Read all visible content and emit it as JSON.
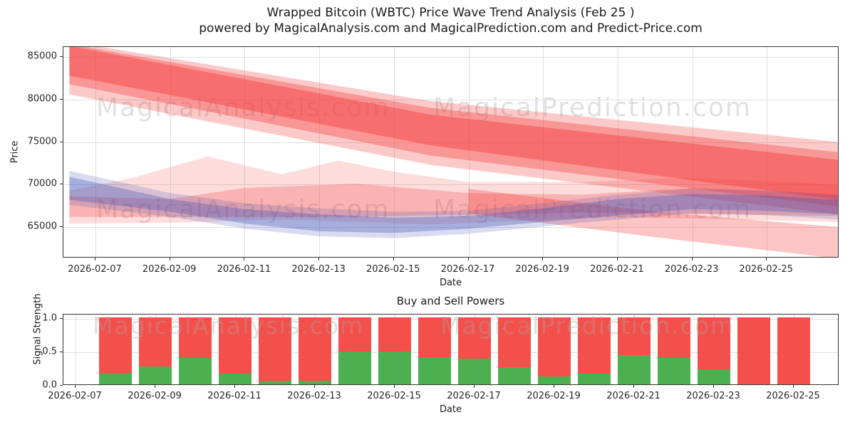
{
  "header": {
    "title_line1": "Wrapped Bitcoin (WBTC) Price Wave Trend Analysis (Feb 25 )",
    "title_line2": "powered by MagicalAnalysis.com and MagicalPrediction.com and Predict-Price.com"
  },
  "watermarks": {
    "analysis": "MagicalAnalysis.com",
    "prediction": "MagicalPrediction.com"
  },
  "price_chart": {
    "ylabel": "Price",
    "xlabel": "Date",
    "y_ticks": [
      {
        "label": "85000",
        "value": 85000
      },
      {
        "label": "80000",
        "value": 80000
      },
      {
        "label": "75000",
        "value": 75000
      },
      {
        "label": "70000",
        "value": 70000
      },
      {
        "label": "65000",
        "value": 65000
      }
    ],
    "x_ticks": [
      {
        "label": "2026-02-07",
        "day": 7
      },
      {
        "label": "2026-02-09",
        "day": 9
      },
      {
        "label": "2026-02-11",
        "day": 11
      },
      {
        "label": "2026-02-13",
        "day": 13
      },
      {
        "label": "2026-02-15",
        "day": 15
      },
      {
        "label": "2026-02-17",
        "day": 17
      },
      {
        "label": "2026-02-19",
        "day": 19
      },
      {
        "label": "2026-02-21",
        "day": 21
      },
      {
        "label": "2026-02-23",
        "day": 23
      },
      {
        "label": "2026-02-25",
        "day": 25
      }
    ]
  },
  "power_chart": {
    "title": "Buy and Sell Powers",
    "ylabel": "Signal Strength",
    "xlabel": "Date",
    "y_ticks": [
      {
        "label": "1.0",
        "value": 1.0
      },
      {
        "label": "0.5",
        "value": 0.5
      },
      {
        "label": "0.0",
        "value": 0.0
      }
    ],
    "x_ticks": [
      {
        "label": "2026-02-07",
        "day": 7
      },
      {
        "label": "2026-02-09",
        "day": 9
      },
      {
        "label": "2026-02-11",
        "day": 11
      },
      {
        "label": "2026-02-13",
        "day": 13
      },
      {
        "label": "2026-02-15",
        "day": 15
      },
      {
        "label": "2026-02-17",
        "day": 17
      },
      {
        "label": "2026-02-19",
        "day": 19
      },
      {
        "label": "2026-02-21",
        "day": 21
      },
      {
        "label": "2026-02-23",
        "day": 23
      },
      {
        "label": "2026-02-25",
        "day": 25
      }
    ]
  },
  "colors": {
    "bar_buy": "#4caf50",
    "bar_sell": "#f4504b",
    "band_red": "#f43d3d",
    "band_blue": "#3f51b5",
    "grid": "#e0e0e0",
    "spine": "#333333"
  },
  "chart_data": [
    {
      "type": "area",
      "title": "Wrapped Bitcoin (WBTC) Price Wave Trend Analysis (Feb 25 )",
      "xlabel": "Date",
      "ylabel": "Price",
      "x_range": [
        "2026-02-06",
        "2026-02-27"
      ],
      "ylim": [
        61300,
        86200
      ],
      "y_tick_values": [
        65000,
        70000,
        75000,
        80000,
        85000
      ],
      "x_tick_labels": [
        "2026-02-07",
        "2026-02-09",
        "2026-02-11",
        "2026-02-13",
        "2026-02-15",
        "2026-02-17",
        "2026-02-19",
        "2026-02-21",
        "2026-02-23",
        "2026-02-25"
      ],
      "grid": true,
      "legend": "none",
      "points_note": "band points are [days since 2026-02-06, price]; polygons drawn top edge then reversed bottom edge",
      "bands": [
        {
          "name": "red-fan-outer",
          "color": "#f43d3d",
          "alpha": 0.28,
          "points": [
            [
              0.3,
              86800
            ],
            [
              10,
              79800
            ],
            [
              20.9,
              75000
            ],
            [
              20.9,
              66500
            ],
            [
              10,
              72300
            ],
            [
              0.3,
              80600
            ]
          ]
        },
        {
          "name": "red-fan-mid",
          "color": "#f43d3d",
          "alpha": 0.36,
          "points": [
            [
              0.3,
              86500
            ],
            [
              10,
              79000
            ],
            [
              20.9,
              73800
            ],
            [
              20.9,
              67400
            ],
            [
              10,
              73400
            ],
            [
              0.3,
              81800
            ]
          ]
        },
        {
          "name": "red-fan-core",
          "color": "#f43d3d",
          "alpha": 0.45,
          "points": [
            [
              0.3,
              86300
            ],
            [
              10,
              78200
            ],
            [
              20.9,
              72900
            ],
            [
              20.9,
              68200
            ],
            [
              10,
              74600
            ],
            [
              0.3,
              82800
            ]
          ]
        },
        {
          "name": "red-lower-breakdown",
          "color": "#f43d3d",
          "alpha": 0.3,
          "points": [
            [
              11,
              69500
            ],
            [
              16,
              66800
            ],
            [
              20.9,
              65000
            ],
            [
              20.9,
              61300
            ],
            [
              16,
              63800
            ],
            [
              11,
              66600
            ]
          ]
        },
        {
          "name": "red-wave-outer",
          "color": "#f43d3d",
          "alpha": 0.18,
          "points": [
            [
              0.3,
              69300
            ],
            [
              2,
              70800
            ],
            [
              4,
              73300
            ],
            [
              6,
              71200
            ],
            [
              7.5,
              72800
            ],
            [
              9,
              71500
            ],
            [
              11,
              70300
            ],
            [
              14,
              70300
            ],
            [
              17,
              70800
            ],
            [
              20.9,
              70000
            ],
            [
              20.9,
              65600
            ],
            [
              15,
              66200
            ],
            [
              10,
              65300
            ],
            [
              6,
              65900
            ],
            [
              3,
              65500
            ],
            [
              0.3,
              65400
            ]
          ]
        },
        {
          "name": "red-wave-inner",
          "color": "#f43d3d",
          "alpha": 0.26,
          "points": [
            [
              0.3,
              68600
            ],
            [
              3,
              68300
            ],
            [
              5,
              69600
            ],
            [
              8,
              70100
            ],
            [
              11,
              69000
            ],
            [
              14,
              68800
            ],
            [
              17,
              69600
            ],
            [
              20.9,
              68800
            ],
            [
              20.9,
              66300
            ],
            [
              14,
              66700
            ],
            [
              8,
              66200
            ],
            [
              4,
              66200
            ],
            [
              0.3,
              66200
            ]
          ]
        },
        {
          "name": "blue-band-outer",
          "color": "#3f51b5",
          "alpha": 0.2,
          "points": [
            [
              0.3,
              71600
            ],
            [
              3,
              69000
            ],
            [
              5,
              67800
            ],
            [
              7,
              67200
            ],
            [
              9,
              66800
            ],
            [
              11,
              66900
            ],
            [
              13,
              67800
            ],
            [
              15,
              68800
            ],
            [
              17,
              69500
            ],
            [
              19,
              69300
            ],
            [
              20.9,
              68800
            ],
            [
              20.9,
              65900
            ],
            [
              19,
              66400
            ],
            [
              17,
              66600
            ],
            [
              14,
              65500
            ],
            [
              11,
              64200
            ],
            [
              9,
              63700
            ],
            [
              7,
              63900
            ],
            [
              5,
              64800
            ],
            [
              3,
              66200
            ],
            [
              0.3,
              67600
            ]
          ]
        },
        {
          "name": "blue-band-core",
          "color": "#3f51b5",
          "alpha": 0.33,
          "points": [
            [
              0.3,
              70900
            ],
            [
              3,
              68300
            ],
            [
              5,
              67100
            ],
            [
              7,
              66500
            ],
            [
              9,
              66100
            ],
            [
              11,
              66300
            ],
            [
              13,
              67200
            ],
            [
              15,
              68300
            ],
            [
              17,
              68900
            ],
            [
              19,
              68700
            ],
            [
              20.9,
              68200
            ],
            [
              20.9,
              66500
            ],
            [
              19,
              66900
            ],
            [
              17,
              67100
            ],
            [
              14,
              66000
            ],
            [
              11,
              64800
            ],
            [
              9,
              64300
            ],
            [
              7,
              64500
            ],
            [
              5,
              65400
            ],
            [
              3,
              66800
            ],
            [
              0.3,
              68200
            ]
          ]
        }
      ]
    },
    {
      "type": "bar",
      "title": "Buy and Sell Powers",
      "xlabel": "Date",
      "ylabel": "Signal Strength",
      "ylim": [
        0,
        1.06
      ],
      "stacked": true,
      "grid": true,
      "legend": "none",
      "categories": [
        "2026-02-08",
        "2026-02-09",
        "2026-02-10",
        "2026-02-11",
        "2026-02-12",
        "2026-02-13",
        "2026-02-14",
        "2026-02-15",
        "2026-02-16",
        "2026-02-17",
        "2026-02-18",
        "2026-02-19",
        "2026-02-20",
        "2026-02-21",
        "2026-02-22",
        "2026-02-23",
        "2026-02-24",
        "2026-02-25"
      ],
      "series": [
        {
          "name": "Buy Power",
          "color": "#4caf50",
          "values": [
            0.17,
            0.27,
            0.39,
            0.16,
            0.05,
            0.05,
            0.49,
            0.49,
            0.4,
            0.38,
            0.26,
            0.12,
            0.16,
            0.44,
            0.39,
            0.22,
            0.0,
            0.0
          ]
        },
        {
          "name": "Sell Power",
          "color": "#f4504b",
          "values": [
            0.83,
            0.73,
            0.61,
            0.84,
            0.95,
            0.95,
            0.51,
            0.51,
            0.6,
            0.62,
            0.74,
            0.88,
            0.84,
            0.56,
            0.61,
            0.78,
            1.0,
            1.0
          ]
        }
      ]
    }
  ]
}
